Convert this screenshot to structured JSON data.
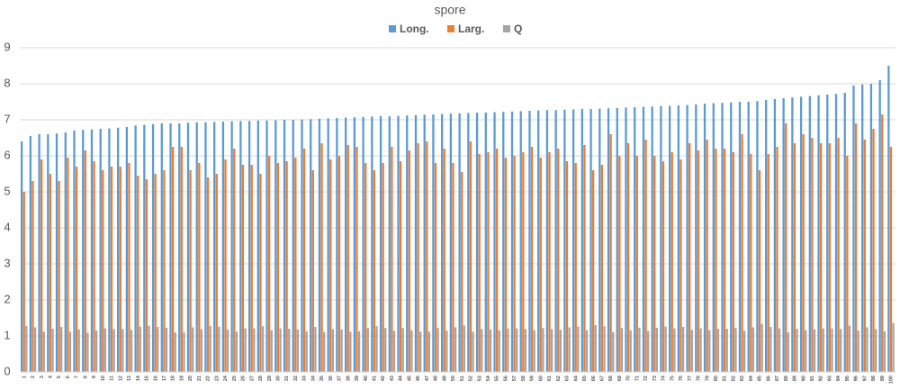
{
  "chart_data": {
    "type": "bar",
    "title": "spore",
    "categories": [
      1,
      2,
      3,
      4,
      5,
      6,
      7,
      8,
      9,
      10,
      11,
      12,
      13,
      14,
      15,
      16,
      17,
      18,
      19,
      20,
      21,
      22,
      23,
      24,
      25,
      26,
      27,
      28,
      29,
      30,
      31,
      32,
      33,
      34,
      35,
      36,
      37,
      38,
      39,
      40,
      41,
      42,
      43,
      44,
      45,
      46,
      47,
      48,
      49,
      50,
      51,
      52,
      53,
      54,
      55,
      56,
      57,
      58,
      59,
      60,
      61,
      62,
      63,
      64,
      65,
      66,
      67,
      68,
      69,
      70,
      71,
      72,
      73,
      74,
      75,
      76,
      77,
      78,
      79,
      80,
      81,
      82,
      83,
      84,
      85,
      86,
      87,
      88,
      89,
      90,
      91,
      92,
      93,
      94,
      95,
      96,
      97,
      98,
      99,
      100
    ],
    "series": [
      {
        "name": "Long.",
        "color": "#5b9bd5",
        "values": [
          6.4,
          6.55,
          6.6,
          6.6,
          6.62,
          6.65,
          6.7,
          6.72,
          6.73,
          6.75,
          6.76,
          6.78,
          6.8,
          6.84,
          6.86,
          6.88,
          6.9,
          6.9,
          6.9,
          6.92,
          6.93,
          6.93,
          6.94,
          6.95,
          6.96,
          6.97,
          6.97,
          6.98,
          6.98,
          6.99,
          7.0,
          7.0,
          7.01,
          7.02,
          7.03,
          7.04,
          7.05,
          7.06,
          7.07,
          7.08,
          7.09,
          7.1,
          7.1,
          7.11,
          7.12,
          7.13,
          7.14,
          7.15,
          7.16,
          7.17,
          7.18,
          7.19,
          7.2,
          7.2,
          7.21,
          7.22,
          7.23,
          7.24,
          7.25,
          7.26,
          7.27,
          7.27,
          7.28,
          7.29,
          7.3,
          7.3,
          7.31,
          7.32,
          7.33,
          7.34,
          7.35,
          7.36,
          7.37,
          7.38,
          7.39,
          7.4,
          7.41,
          7.43,
          7.45,
          7.46,
          7.47,
          7.48,
          7.5,
          7.5,
          7.52,
          7.55,
          7.58,
          7.6,
          7.62,
          7.64,
          7.66,
          7.68,
          7.7,
          7.72,
          7.75,
          7.95,
          7.98,
          8.0,
          8.1,
          8.5
        ]
      },
      {
        "name": "Larg.",
        "color": "#ed7d31",
        "values": [
          5.0,
          5.3,
          5.9,
          5.5,
          5.3,
          5.95,
          5.7,
          6.15,
          5.85,
          5.6,
          5.7,
          5.7,
          5.8,
          5.45,
          5.35,
          5.5,
          5.6,
          6.25,
          6.25,
          5.6,
          5.8,
          5.4,
          5.5,
          5.9,
          6.2,
          5.75,
          5.75,
          5.5,
          6.0,
          5.8,
          5.85,
          5.95,
          6.2,
          5.6,
          6.35,
          5.9,
          6.0,
          6.3,
          6.25,
          5.8,
          5.6,
          5.8,
          6.25,
          5.85,
          6.15,
          6.35,
          6.4,
          5.8,
          6.2,
          5.8,
          5.55,
          6.4,
          6.05,
          6.1,
          6.2,
          5.95,
          6.0,
          6.1,
          6.25,
          5.95,
          6.1,
          6.2,
          5.85,
          5.8,
          6.3,
          5.6,
          5.75,
          6.6,
          6.0,
          6.35,
          6.0,
          6.45,
          6.0,
          5.85,
          6.1,
          5.9,
          6.35,
          6.15,
          6.45,
          6.2,
          6.2,
          6.1,
          6.6,
          6.05,
          5.6,
          6.05,
          6.25,
          6.9,
          6.35,
          6.6,
          6.5,
          6.35,
          6.35,
          6.5,
          6.0,
          6.9,
          6.45,
          6.75,
          7.15,
          6.25
        ]
      },
      {
        "name": "Q",
        "color": "#a5a5a5",
        "values": [
          1.28,
          1.24,
          1.12,
          1.2,
          1.25,
          1.12,
          1.18,
          1.09,
          1.15,
          1.21,
          1.19,
          1.19,
          1.17,
          1.26,
          1.28,
          1.25,
          1.23,
          1.1,
          1.1,
          1.24,
          1.19,
          1.28,
          1.26,
          1.18,
          1.12,
          1.21,
          1.21,
          1.27,
          1.16,
          1.21,
          1.2,
          1.18,
          1.13,
          1.25,
          1.11,
          1.19,
          1.18,
          1.12,
          1.13,
          1.22,
          1.27,
          1.22,
          1.14,
          1.22,
          1.16,
          1.12,
          1.12,
          1.23,
          1.15,
          1.24,
          1.29,
          1.12,
          1.19,
          1.18,
          1.16,
          1.21,
          1.21,
          1.19,
          1.16,
          1.22,
          1.19,
          1.17,
          1.24,
          1.26,
          1.16,
          1.3,
          1.27,
          1.11,
          1.22,
          1.16,
          1.23,
          1.14,
          1.23,
          1.26,
          1.21,
          1.25,
          1.17,
          1.21,
          1.16,
          1.2,
          1.2,
          1.23,
          1.14,
          1.24,
          1.34,
          1.25,
          1.21,
          1.1,
          1.2,
          1.16,
          1.18,
          1.21,
          1.21,
          1.19,
          1.29,
          1.15,
          1.24,
          1.19,
          1.13,
          1.36
        ]
      }
    ],
    "ylim": [
      0,
      9
    ],
    "yticks": [
      0,
      1,
      2,
      3,
      4,
      5,
      6,
      7,
      8,
      9
    ],
    "grid": true,
    "legend": "top"
  }
}
